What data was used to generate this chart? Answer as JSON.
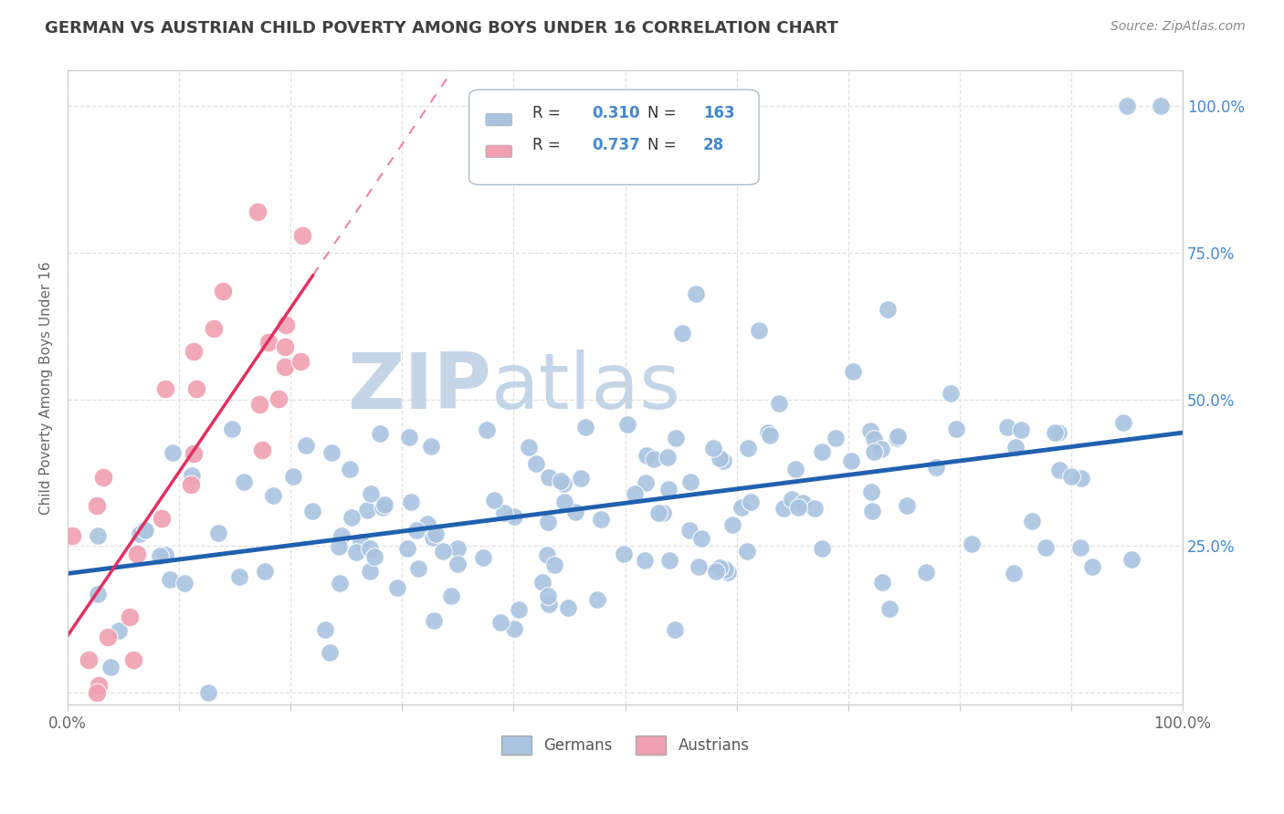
{
  "title": "GERMAN VS AUSTRIAN CHILD POVERTY AMONG BOYS UNDER 16 CORRELATION CHART",
  "source": "Source: ZipAtlas.com",
  "ylabel": "Child Poverty Among Boys Under 16",
  "german_R": 0.31,
  "german_N": 163,
  "austrian_R": 0.737,
  "austrian_N": 28,
  "german_color": "#aac4e0",
  "austrian_color": "#f0a0b0",
  "german_line_color": "#2060b0",
  "austrian_line_color": "#e03060",
  "watermark_zip": "ZIP",
  "watermark_atlas": "atlas",
  "watermark_color_zip": "#c5d5e8",
  "watermark_color_atlas": "#c5d5e8",
  "background_color": "#ffffff",
  "title_color": "#404040",
  "right_label_color": "#4488cc",
  "legend_R_label_color": "#4488cc",
  "legend_N_label_color": "#4488cc",
  "legend_text_color": "#333333",
  "source_color": "#888888",
  "grid_color": "#dddddd",
  "axis_color": "#cccccc",
  "tick_label_color": "#666666",
  "ylabel_color": "#666666"
}
